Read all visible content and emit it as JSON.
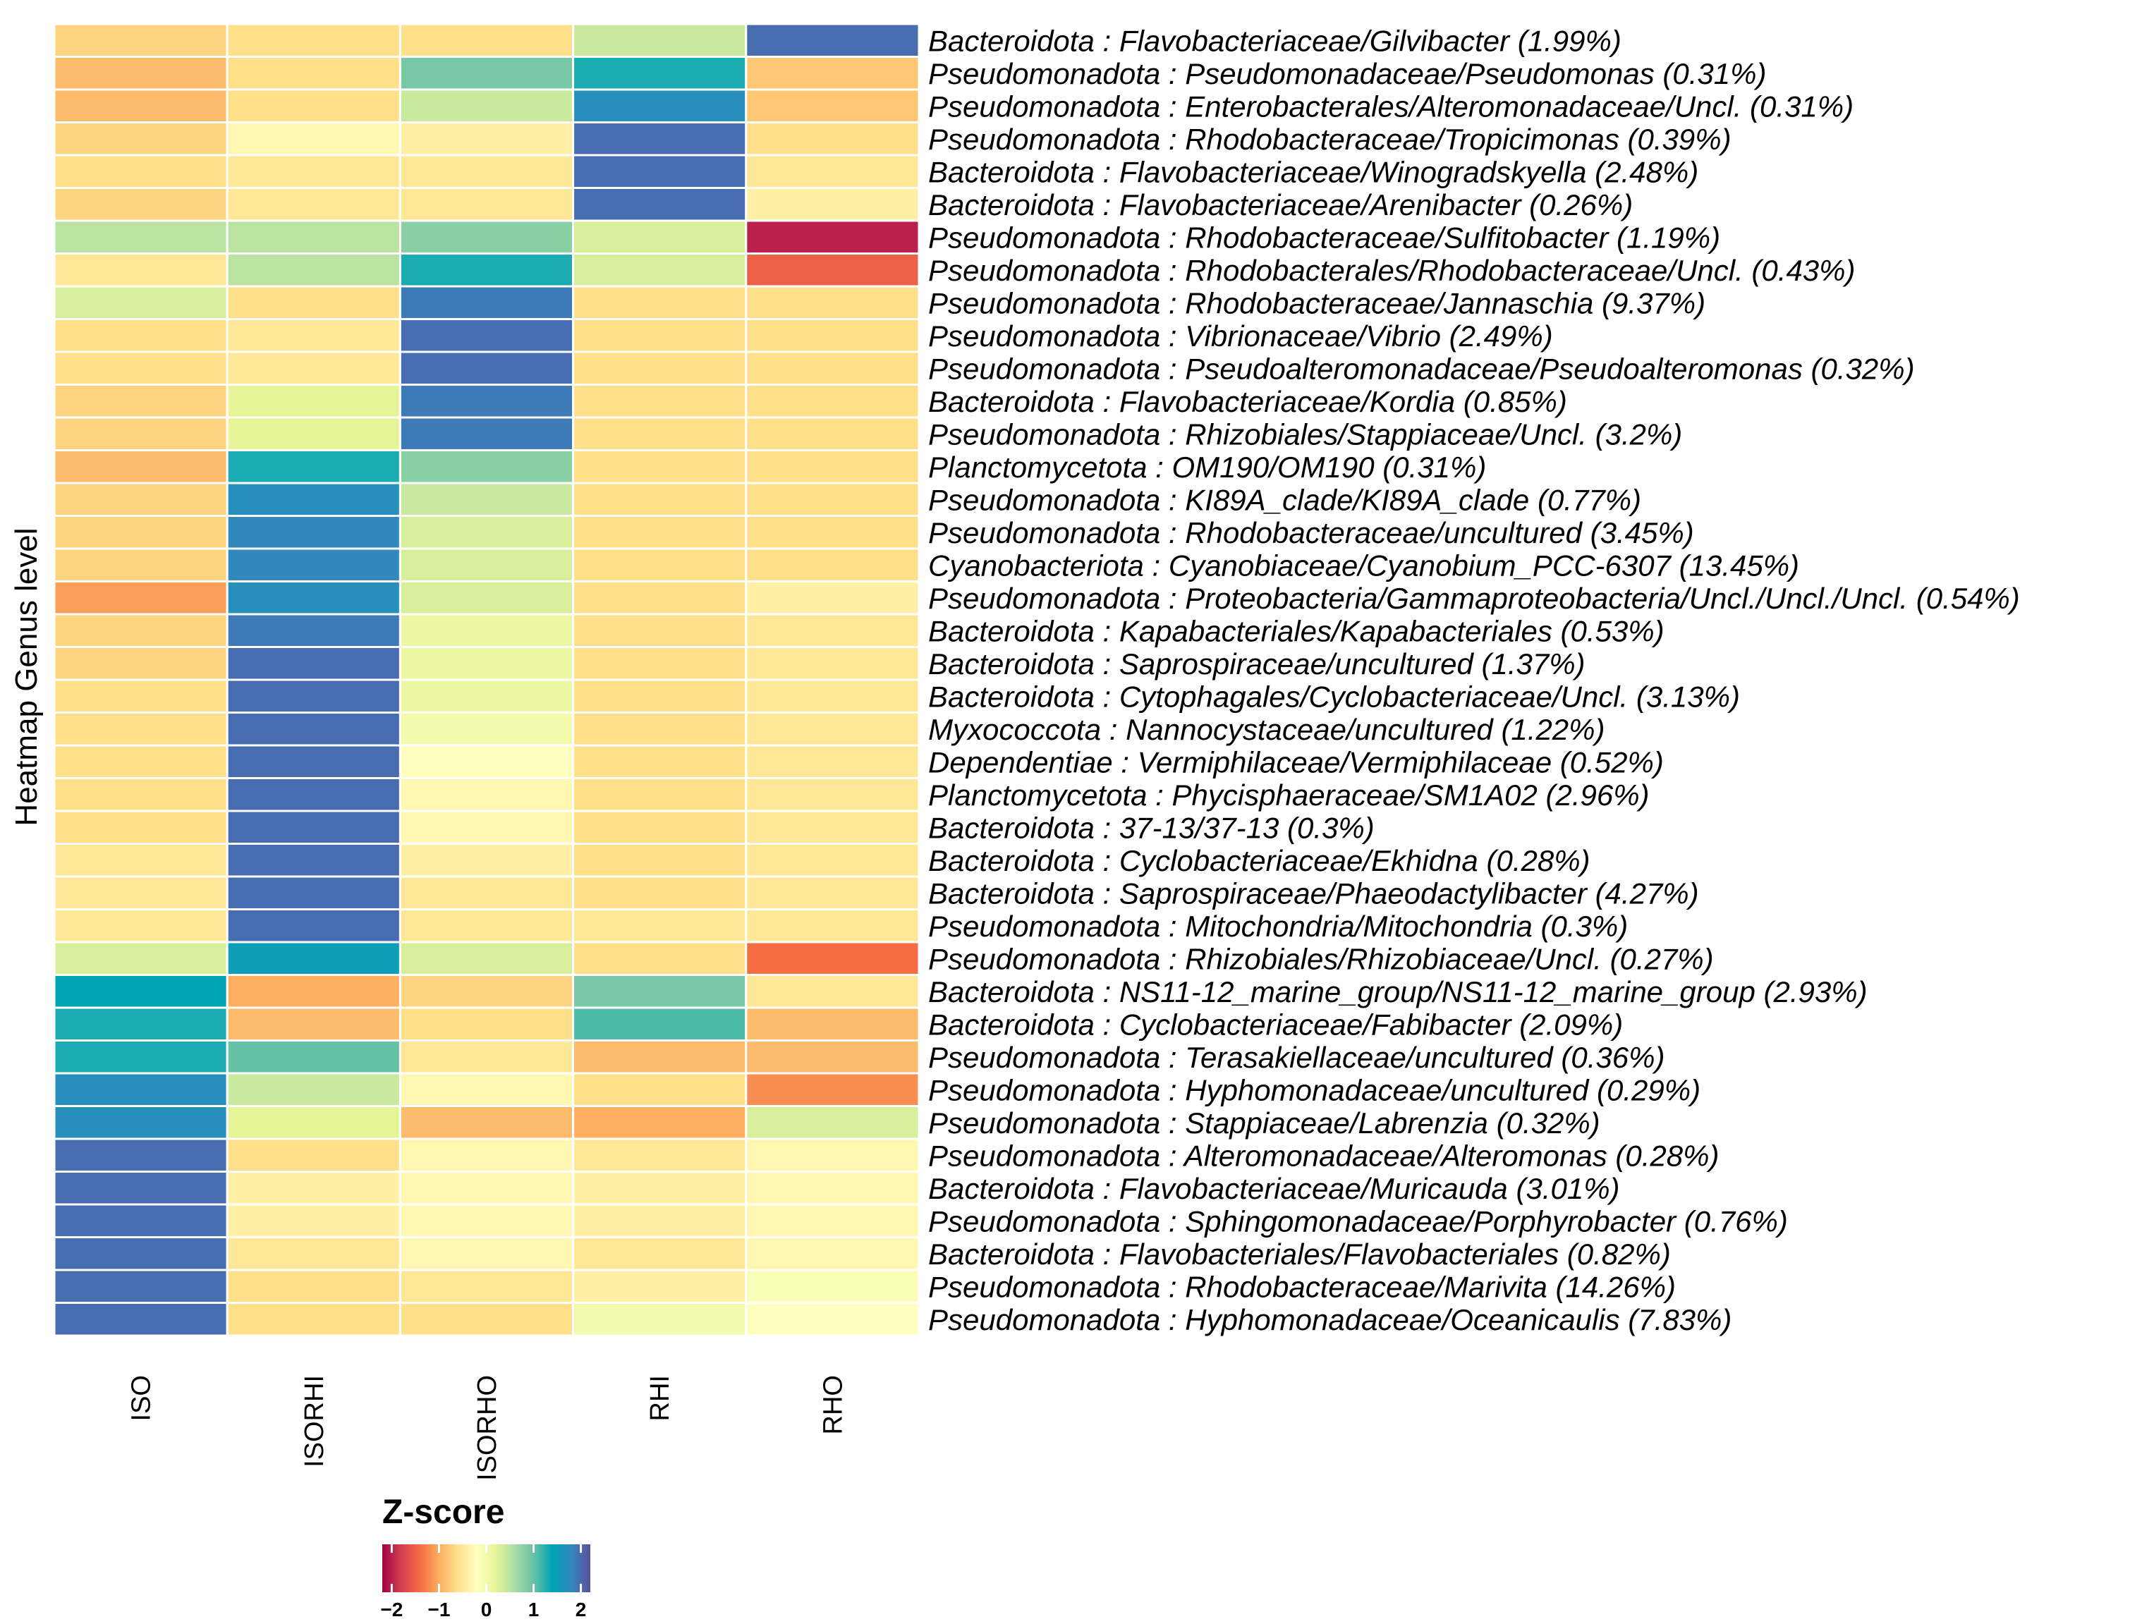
{
  "chart_data": {
    "type": "heatmap",
    "ylabel": "Heatmap Genus level",
    "columns": [
      "ISO",
      "ISORHI",
      "ISORHO",
      "RHI",
      "RHO"
    ],
    "rows": [
      "Bacteroidota : Flavobacteriaceae/Gilvibacter (1.99%)",
      "Pseudomonadota : Pseudomonadaceae/Pseudomonas (0.31%)",
      "Pseudomonadota : Enterobacterales/Alteromonadaceae/Uncl. (0.31%)",
      "Pseudomonadota : Rhodobacteraceae/Tropicimonas (0.39%)",
      "Bacteroidota : Flavobacteriaceae/Winogradskyella (2.48%)",
      "Bacteroidota : Flavobacteriaceae/Arenibacter (0.26%)",
      "Pseudomonadota : Rhodobacteraceae/Sulfitobacter (1.19%)",
      "Pseudomonadota : Rhodobacterales/Rhodobacteraceae/Uncl. (0.43%)",
      "Pseudomonadota : Rhodobacteraceae/Jannaschia (9.37%)",
      "Pseudomonadota : Vibrionaceae/Vibrio (2.49%)",
      "Pseudomonadota : Pseudoalteromonadaceae/Pseudoalteromonas (0.32%)",
      "Bacteroidota : Flavobacteriaceae/Kordia (0.85%)",
      "Pseudomonadota : Rhizobiales/Stappiaceae/Uncl. (3.2%)",
      "Planctomycetota : OM190/OM190 (0.31%)",
      "Pseudomonadota : KI89A_clade/KI89A_clade (0.77%)",
      "Pseudomonadota : Rhodobacteraceae/uncultured (3.45%)",
      "Cyanobacteriota : Cyanobiaceae/Cyanobium_PCC-6307 (13.45%)",
      "Pseudomonadota : Proteobacteria/Gammaproteobacteria/Uncl./Uncl./Uncl. (0.54%)",
      "Bacteroidota : Kapabacteriales/Kapabacteriales (0.53%)",
      "Bacteroidota : Saprospiraceae/uncultured (1.37%)",
      "Bacteroidota : Cytophagales/Cyclobacteriaceae/Uncl. (3.13%)",
      "Myxococcota : Nannocystaceae/uncultured (1.22%)",
      "Dependentiae : Vermiphilaceae/Vermiphilaceae (0.52%)",
      "Planctomycetota : Phycisphaeraceae/SM1A02 (2.96%)",
      "Bacteroidota : 37-13/37-13 (0.3%)",
      "Bacteroidota : Cyclobacteriaceae/Ekhidna (0.28%)",
      "Bacteroidota : Saprospiraceae/Phaeodactylibacter (4.27%)",
      "Pseudomonadota : Mitochondria/Mitochondria (0.3%)",
      "Pseudomonadota : Rhizobiales/Rhizobiaceae/Uncl. (0.27%)",
      "Bacteroidota : NS11-12_marine_group/NS11-12_marine_group (2.93%)",
      "Bacteroidota : Cyclobacteriaceae/Fabibacter (2.09%)",
      "Pseudomonadota : Terasakiellaceae/uncultured (0.36%)",
      "Pseudomonadota : Hyphomonadaceae/uncultured (0.29%)",
      "Pseudomonadota : Stappiaceae/Labrenzia (0.32%)",
      "Pseudomonadota : Alteromonadaceae/Alteromonas (0.28%)",
      "Bacteroidota : Flavobacteriaceae/Muricauda (3.01%)",
      "Pseudomonadota : Sphingomonadaceae/Porphyrobacter (0.76%)",
      "Bacteroidota : Flavobacteriales/Flavobacteriales (0.82%)",
      "Pseudomonadota : Rhodobacteraceae/Marivita (14.26%)",
      "Pseudomonadota : Hyphomonadaceae/Oceanicaulis (7.83%)"
    ],
    "values": [
      [
        -0.7,
        -0.6,
        -0.6,
        0.4,
        2.0
      ],
      [
        -0.9,
        -0.6,
        0.9,
        1.3,
        -0.8
      ],
      [
        -0.9,
        -0.6,
        0.4,
        1.7,
        -0.8
      ],
      [
        -0.7,
        -0.3,
        -0.4,
        2.0,
        -0.6
      ],
      [
        -0.6,
        -0.5,
        -0.5,
        2.0,
        -0.5
      ],
      [
        -0.7,
        -0.5,
        -0.5,
        2.0,
        -0.4
      ],
      [
        0.5,
        0.5,
        0.8,
        0.3,
        -2.0
      ],
      [
        -0.5,
        0.5,
        1.3,
        0.3,
        -1.5
      ],
      [
        0.3,
        -0.6,
        1.9,
        -0.6,
        -0.6
      ],
      [
        -0.6,
        -0.5,
        2.0,
        -0.6,
        -0.6
      ],
      [
        -0.6,
        -0.5,
        2.0,
        -0.6,
        -0.6
      ],
      [
        -0.7,
        0.2,
        1.9,
        -0.6,
        -0.6
      ],
      [
        -0.7,
        0.2,
        1.9,
        -0.6,
        -0.6
      ],
      [
        -0.9,
        1.3,
        0.8,
        -0.6,
        -0.6
      ],
      [
        -0.7,
        1.7,
        0.4,
        -0.6,
        -0.6
      ],
      [
        -0.7,
        1.8,
        0.3,
        -0.6,
        -0.6
      ],
      [
        -0.7,
        1.8,
        0.3,
        -0.6,
        -0.6
      ],
      [
        -1.1,
        1.7,
        0.3,
        -0.6,
        -0.4
      ],
      [
        -0.7,
        1.9,
        0.1,
        -0.6,
        -0.5
      ],
      [
        -0.7,
        2.0,
        0.1,
        -0.6,
        -0.5
      ],
      [
        -0.6,
        2.0,
        0.1,
        -0.6,
        -0.5
      ],
      [
        -0.6,
        2.0,
        0.0,
        -0.6,
        -0.5
      ],
      [
        -0.6,
        2.0,
        -0.2,
        -0.6,
        -0.5
      ],
      [
        -0.6,
        2.0,
        -0.3,
        -0.6,
        -0.5
      ],
      [
        -0.6,
        2.0,
        -0.3,
        -0.6,
        -0.5
      ],
      [
        -0.5,
        2.0,
        -0.4,
        -0.6,
        -0.5
      ],
      [
        -0.5,
        2.0,
        -0.5,
        -0.6,
        -0.5
      ],
      [
        -0.5,
        2.0,
        -0.5,
        -0.5,
        -0.5
      ],
      [
        0.3,
        1.5,
        0.3,
        -0.6,
        -1.4
      ],
      [
        1.4,
        -1.0,
        -0.7,
        0.9,
        -0.5
      ],
      [
        1.3,
        -0.9,
        -0.6,
        1.1,
        -0.9
      ],
      [
        1.3,
        1.0,
        -0.5,
        -0.9,
        -0.9
      ],
      [
        1.7,
        0.4,
        -0.3,
        -0.6,
        -1.2
      ],
      [
        1.7,
        0.2,
        -0.9,
        -1.0,
        0.3
      ],
      [
        2.0,
        -0.6,
        -0.3,
        -0.5,
        -0.3
      ],
      [
        2.0,
        -0.4,
        -0.3,
        -0.4,
        -0.3
      ],
      [
        2.0,
        -0.4,
        -0.3,
        -0.4,
        -0.3
      ],
      [
        2.0,
        -0.5,
        -0.3,
        -0.5,
        -0.3
      ],
      [
        2.0,
        -0.6,
        -0.5,
        -0.4,
        -0.1
      ],
      [
        2.0,
        -0.6,
        -0.6,
        0.0,
        -0.2
      ]
    ],
    "scale": {
      "min": -2.2,
      "max": 2.2,
      "colors": [
        "#9e0142",
        "#d53e4f",
        "#f46d43",
        "#fdae61",
        "#fee08b",
        "#ffffbf",
        "#e6f598",
        "#abdda4",
        "#66c2a5",
        "#00a4b5",
        "#3288bd",
        "#5e4fa2"
      ]
    },
    "legend": {
      "title": "Z-score",
      "ticks": [
        -2,
        -1,
        0,
        1,
        2
      ],
      "tick_labels": [
        "−2",
        "−1",
        "0",
        "1",
        "2"
      ]
    }
  }
}
